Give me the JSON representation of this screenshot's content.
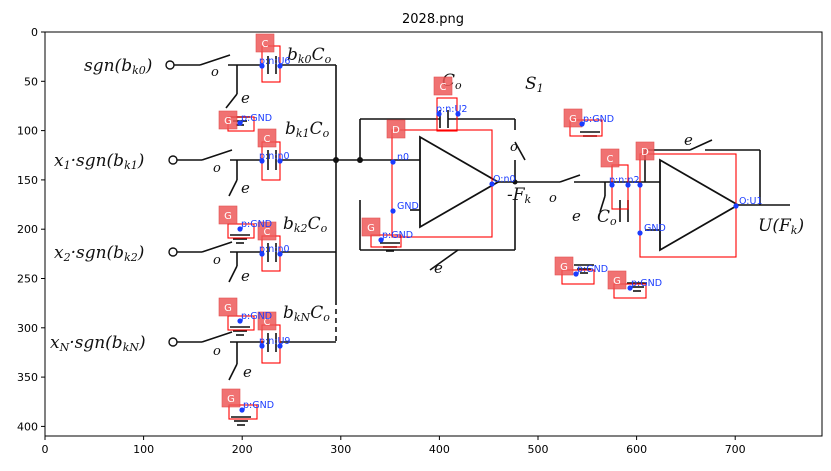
{
  "title": "2028.png",
  "axes": {
    "x_ticks": [
      "0",
      "100",
      "200",
      "300",
      "400",
      "500",
      "600",
      "700"
    ],
    "y_ticks": [
      "0",
      "50",
      "100",
      "150",
      "200",
      "250",
      "300",
      "350",
      "400"
    ]
  },
  "handwritten": {
    "sgn_bk0": "sgn(b",
    "sgn_bk0_sub": "k0",
    "x1_label": "x",
    "x1_sub": "1",
    "x1_rest": "·sgn(b",
    "x1_rest_sub": "k1",
    "x2_label": "x",
    "x2_sub": "2",
    "x2_rest": "·sgn(b",
    "x2_rest_sub": "k2",
    "xN_label": "x",
    "xN_sub": "N",
    "xN_rest": "·sgn(b",
    "xN_rest_sub": "kN",
    "close_paren": ")",
    "bk0C0": "b",
    "bk0C0_sub": "k0",
    "bk1C0": "b",
    "bk1C0_sub": "k1",
    "bk2C0": "b",
    "bk2C0_sub": "k2",
    "bkNC0": "b",
    "bkNC0_sub": "kN",
    "C": "C",
    "o_sub": "o",
    "C0_top": "C",
    "S1": "S",
    "S1_sub": "1",
    "minus_Fk": "-F",
    "Fk_sub": "k",
    "C0_right": "C",
    "UFk": "U(F",
    "UFk_sub": "k",
    "e": "e",
    "o": "o"
  },
  "components": [
    {
      "tag": "C",
      "label": "p:n:U6"
    },
    {
      "tag": "G",
      "label": "p:GND"
    },
    {
      "tag": "C",
      "label": "p:n:n0"
    },
    {
      "tag": "G",
      "label": "p:GND"
    },
    {
      "tag": "C",
      "label": "p:n:n0"
    },
    {
      "tag": "G",
      "label": "p:GND"
    },
    {
      "tag": "C",
      "label": "p:n:U9"
    },
    {
      "tag": "G",
      "label": "p:GND"
    },
    {
      "tag": "C",
      "label": "p:n:U2"
    },
    {
      "tag": "D",
      "label": ""
    },
    {
      "tag": "G",
      "label": "p:GND"
    },
    {
      "tag": "G",
      "label": "p:GND"
    },
    {
      "tag": "C",
      "label": "p:n:n2"
    },
    {
      "tag": "D",
      "label": ""
    },
    {
      "tag": "G",
      "label": "p:GND"
    },
    {
      "tag": "G",
      "label": "p:GND"
    }
  ],
  "nodes": {
    "n0": "n0",
    "gnd": "GND",
    "o_n0": "O:n0",
    "o_u1": "O:U1",
    "gnd2": "GND"
  },
  "colors": {
    "box": "#ff0000",
    "tag": "#ee5a5a",
    "node": "#1a3cff"
  }
}
